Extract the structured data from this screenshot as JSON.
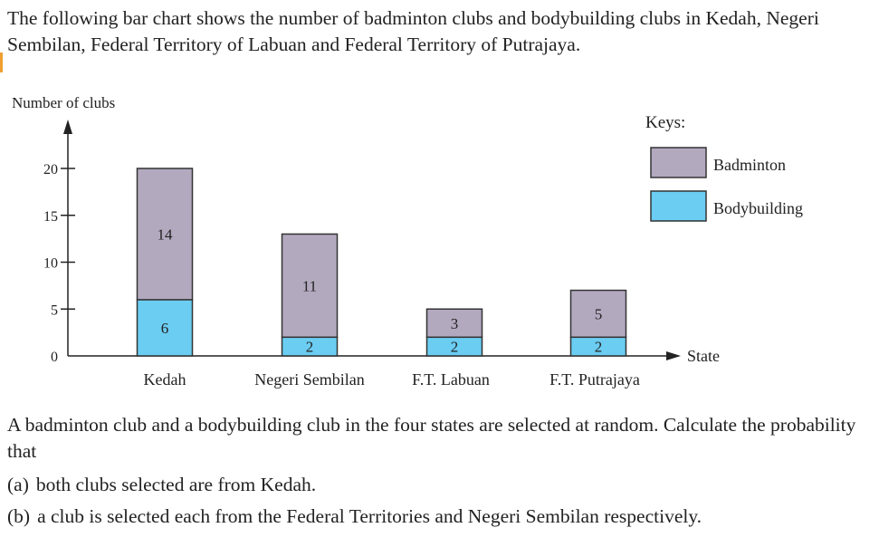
{
  "intro_text": "The following bar chart shows the number of badminton clubs and bodybuilding clubs in Kedah, Negeri Sembilan, Federal Territory of Labuan and Federal Territory of Putrajaya.",
  "question_text": "A badminton club and a bodybuilding club in the four states are selected at random. Calculate the probability that",
  "parts": [
    {
      "label": "(a)",
      "text": "both clubs selected are from Kedah."
    },
    {
      "label": "(b)",
      "text": "a club is selected each from the Federal Territories and Negeri Sembilan respectively."
    }
  ],
  "colors": {
    "badminton": "#b3a9bf",
    "bodybuilding": "#6bcdf2",
    "outline": "#333333",
    "accent": "#f0a030"
  },
  "chart_data": {
    "type": "bar",
    "stacked": true,
    "ylabel": "Number of clubs",
    "xlabel": "State",
    "ylim": [
      0,
      20
    ],
    "yticks": [
      0,
      5,
      10,
      15,
      20
    ],
    "categories": [
      "Kedah",
      "Negeri Sembilan",
      "F.T. Labuan",
      "F.T. Putrajaya"
    ],
    "series": [
      {
        "name": "Bodybuilding",
        "values": [
          6,
          2,
          2,
          2
        ]
      },
      {
        "name": "Badminton",
        "values": [
          14,
          11,
          3,
          5
        ]
      }
    ],
    "legend_title": "Keys:",
    "legend_position": "top-right",
    "grid": false
  }
}
